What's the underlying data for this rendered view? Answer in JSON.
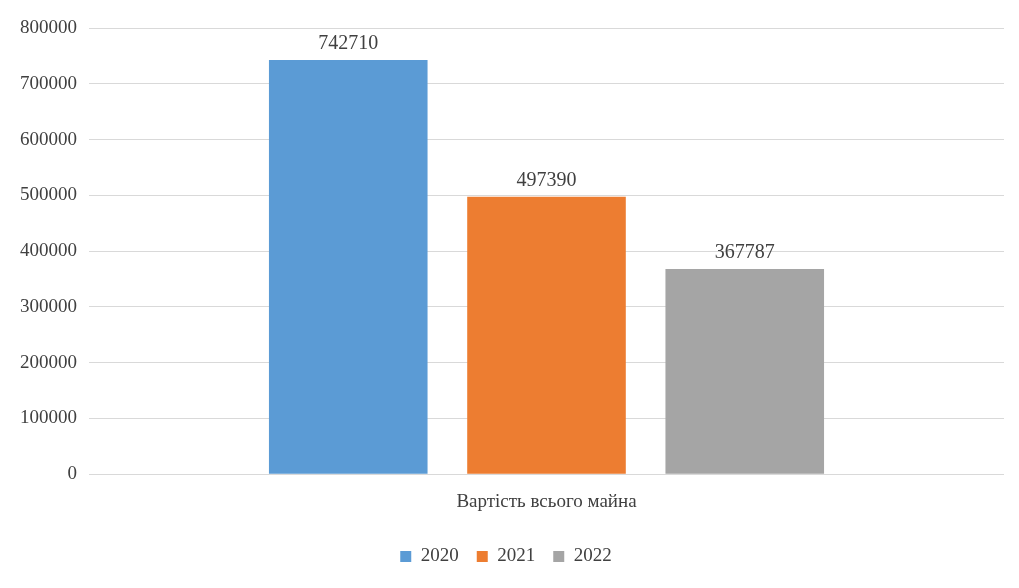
{
  "chart_data": {
    "type": "bar",
    "categories": [
      "Вартість всього майна"
    ],
    "series": [
      {
        "name": "2020",
        "color": "#5b9bd5",
        "values": [
          742710
        ]
      },
      {
        "name": "2021",
        "color": "#ed7d31",
        "values": [
          497390
        ]
      },
      {
        "name": "2022",
        "color": "#a5a5a5",
        "values": [
          367787
        ]
      }
    ],
    "ylim": [
      0,
      800000
    ],
    "yticks": [
      0,
      100000,
      200000,
      300000,
      400000,
      500000,
      600000,
      700000,
      800000
    ],
    "grid": "y",
    "legend": "bottom",
    "data_labels": true
  }
}
